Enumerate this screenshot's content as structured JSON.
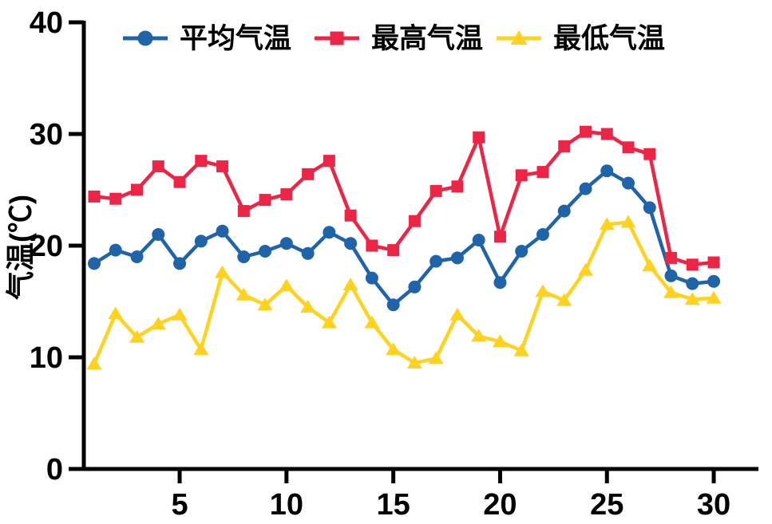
{
  "chart_data": {
    "type": "line",
    "title": "",
    "xlabel": "",
    "ylabel": "气温(℃)",
    "x_range_days": [
      1,
      30
    ],
    "xticks": [
      5,
      10,
      15,
      20,
      25,
      30
    ],
    "yticks": [
      0,
      10,
      20,
      30,
      40
    ],
    "ylim": [
      0,
      40
    ],
    "grid": false,
    "legend_position": "top",
    "background_color": "#ffffff",
    "axis_color": "#000000",
    "series": [
      {
        "name": "平均气温",
        "key": "average-temp",
        "marker": "circle",
        "color": "#1f63a8",
        "values": [
          18.4,
          19.6,
          19.0,
          21.0,
          18.4,
          20.4,
          21.3,
          19.0,
          19.5,
          20.2,
          19.3,
          21.2,
          20.2,
          17.1,
          14.7,
          16.3,
          18.6,
          18.9,
          20.5,
          16.7,
          19.5,
          21.0,
          23.1,
          25.1,
          26.7,
          25.6,
          23.4,
          17.3,
          16.6,
          16.8
        ]
      },
      {
        "name": "最高气温",
        "key": "max-temp",
        "marker": "square",
        "color": "#ec2547",
        "values": [
          24.4,
          24.2,
          25.0,
          27.1,
          25.7,
          27.6,
          27.1,
          23.1,
          24.1,
          24.6,
          26.4,
          27.6,
          22.7,
          20.0,
          19.6,
          22.2,
          24.9,
          25.3,
          29.7,
          20.8,
          26.3,
          26.6,
          28.9,
          30.2,
          30.0,
          28.8,
          28.2,
          18.9,
          18.3,
          18.5
        ]
      },
      {
        "name": "最低气温",
        "key": "min-temp",
        "marker": "triangle",
        "color": "#ffd21f",
        "values": [
          9.4,
          13.9,
          11.8,
          13.0,
          13.8,
          10.7,
          17.6,
          15.6,
          14.7,
          16.4,
          14.5,
          13.1,
          16.5,
          13.1,
          10.7,
          9.5,
          9.9,
          13.8,
          11.9,
          11.4,
          10.6,
          15.9,
          15.1,
          17.8,
          21.9,
          22.1,
          18.2,
          15.8,
          15.2,
          15.3
        ]
      }
    ]
  }
}
